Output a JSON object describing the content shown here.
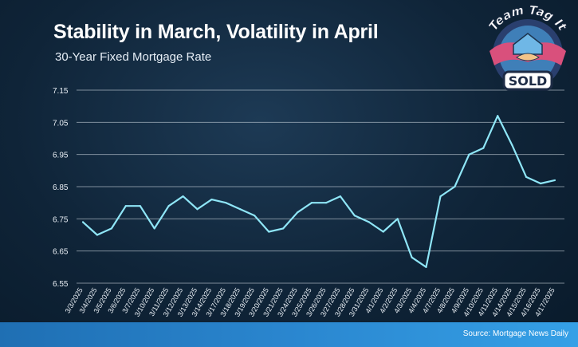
{
  "logo": {
    "brand_text": "Team Tag It",
    "badge_text": "SOLD"
  },
  "footer": {
    "source_text": "Source: Mortgage News Daily"
  },
  "colors": {
    "line": "#8fe6f7",
    "grid": "#d8e2ea",
    "footer_bar": "#2a86cf"
  },
  "chart_data": {
    "type": "line",
    "title": "Stability in March, Volatility in April",
    "subtitle": "30-Year Fixed Mortgage Rate",
    "xlabel": "",
    "ylabel": "",
    "ylim": [
      6.55,
      7.15
    ],
    "yticks": [
      "7.15",
      "7.05",
      "6.95",
      "6.85",
      "6.75",
      "6.65",
      "6.55"
    ],
    "grid": true,
    "categories": [
      "3/3/2025",
      "3/4/2025",
      "3/5/2025",
      "3/6/2025",
      "3/7/2025",
      "3/10/2025",
      "3/11/2025",
      "3/12/2025",
      "3/13/2025",
      "3/14/2025",
      "3/17/2025",
      "3/18/2025",
      "3/19/2025",
      "3/20/2025",
      "3/21/2025",
      "3/24/2025",
      "3/25/2025",
      "3/26/2025",
      "3/27/2025",
      "3/28/2025",
      "3/31/2025",
      "4/1/2025",
      "4/2/2025",
      "4/3/2025",
      "4/4/2025",
      "4/7/2025",
      "4/8/2025",
      "4/9/2025",
      "4/10/2025",
      "4/11/2025",
      "4/14/2025",
      "4/15/2025",
      "4/16/2025",
      "4/17/2025"
    ],
    "series": [
      {
        "values": [
          6.74,
          6.7,
          6.72,
          6.79,
          6.79,
          6.72,
          6.79,
          6.82,
          6.78,
          6.81,
          6.8,
          6.78,
          6.76,
          6.71,
          6.72,
          6.77,
          6.8,
          6.8,
          6.82,
          6.76,
          6.74,
          6.71,
          6.75,
          6.63,
          6.6,
          6.82,
          6.85,
          6.95,
          6.97,
          7.07,
          6.98,
          6.88,
          6.86,
          6.87
        ]
      }
    ]
  }
}
